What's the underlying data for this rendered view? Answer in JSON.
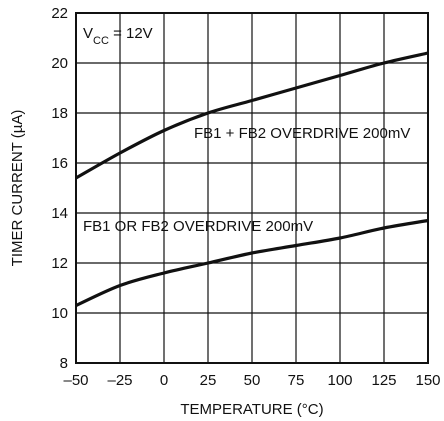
{
  "chart_data": {
    "type": "line",
    "xlabel": "TEMPERATURE (°C)",
    "ylabel": "TIMER CURRENT (µA)",
    "xlim": [
      -50,
      150
    ],
    "ylim": [
      8,
      22
    ],
    "xticks": [
      -50,
      -25,
      0,
      25,
      50,
      75,
      100,
      125,
      150
    ],
    "xtick_labels": [
      "–50",
      "–25",
      "0",
      "25",
      "50",
      "75",
      "100",
      "125",
      "150"
    ],
    "yticks": [
      8,
      10,
      12,
      14,
      16,
      18,
      20,
      22
    ],
    "ytick_labels": [
      "8",
      "10",
      "12",
      "14",
      "16",
      "18",
      "20",
      "22"
    ],
    "grid": true,
    "condition": {
      "prefix": "V",
      "subscript": "CC",
      "suffix": " = 12V"
    },
    "series": [
      {
        "name": "FB1 + FB2 OVERDRIVE 200mV",
        "x": [
          -50,
          -25,
          0,
          25,
          50,
          75,
          100,
          125,
          150
        ],
        "y": [
          15.4,
          16.4,
          17.3,
          18.0,
          18.5,
          19.0,
          19.5,
          20.0,
          20.4
        ]
      },
      {
        "name": "FB1 OR FB2 OVERDRIVE 200mV",
        "x": [
          -50,
          -25,
          0,
          25,
          50,
          75,
          100,
          125,
          150
        ],
        "y": [
          10.3,
          11.1,
          11.6,
          12.0,
          12.4,
          12.7,
          13.0,
          13.4,
          13.7
        ]
      }
    ]
  }
}
